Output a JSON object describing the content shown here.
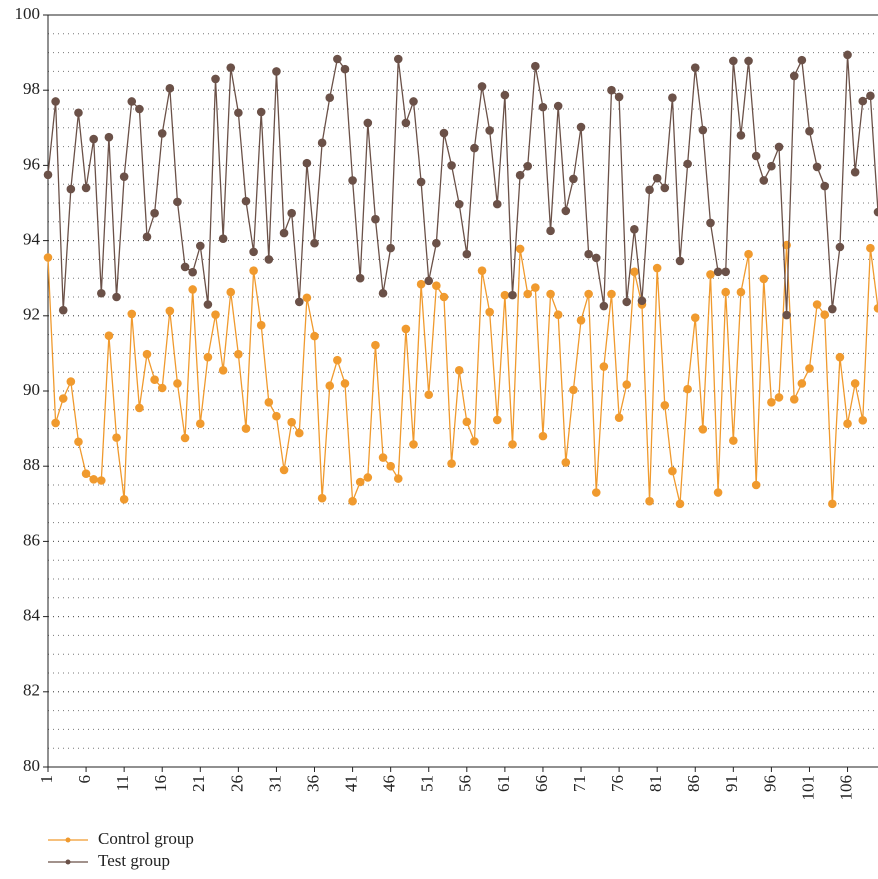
{
  "chart_data": {
    "type": "line",
    "x": [
      1,
      2,
      3,
      4,
      5,
      6,
      7,
      8,
      9,
      10,
      11,
      12,
      13,
      14,
      15,
      16,
      17,
      18,
      19,
      20,
      21,
      22,
      23,
      24,
      25,
      26,
      27,
      28,
      29,
      30,
      31,
      32,
      33,
      34,
      35,
      36,
      37,
      38,
      39,
      40,
      41,
      42,
      43,
      44,
      45,
      46,
      47,
      48,
      49,
      50,
      51,
      52,
      53,
      54,
      55,
      56,
      57,
      58,
      59,
      60,
      61,
      62,
      63,
      64,
      65,
      66,
      67,
      68,
      69,
      70,
      71,
      72,
      73,
      74,
      75,
      76,
      77,
      78,
      79,
      80,
      81,
      82,
      83,
      84,
      85,
      86,
      87,
      88,
      89,
      90,
      91,
      92,
      93,
      94,
      95,
      96,
      97,
      98,
      99,
      100,
      101,
      102,
      103,
      104,
      105,
      106,
      107,
      108,
      109,
      110
    ],
    "xlim": [
      1,
      110
    ],
    "xticks": [
      1,
      6,
      11,
      16,
      21,
      26,
      31,
      36,
      41,
      46,
      51,
      56,
      61,
      66,
      71,
      76,
      81,
      86,
      91,
      96,
      101,
      106
    ],
    "ylim": [
      80,
      100
    ],
    "yticks": [
      80,
      82,
      84,
      86,
      88,
      90,
      92,
      94,
      96,
      98,
      100
    ],
    "yminorticks": [
      80.5,
      81,
      81.5,
      82,
      82.5,
      83,
      83.5,
      84,
      84.5,
      85,
      85.5,
      86,
      86.5,
      87,
      87.5,
      88,
      88.5,
      89,
      89.5,
      90,
      90.5,
      91,
      91.5,
      92,
      92.5,
      93,
      93.5,
      94,
      94.5,
      95,
      95.5,
      96,
      96.5,
      97,
      97.5,
      98,
      98.5,
      99,
      99.5
    ],
    "grid": true,
    "legend": "bottom-left",
    "series": [
      {
        "name": "Control group",
        "color": "#f09a2e",
        "values": [
          93.55,
          89.15,
          89.8,
          90.25,
          88.65,
          87.8,
          87.65,
          87.62,
          91.47,
          88.76,
          87.12,
          92.05,
          89.55,
          90.98,
          90.3,
          90.08,
          92.13,
          90.2,
          88.75,
          92.7,
          89.13,
          90.9,
          92.03,
          90.55,
          92.63,
          90.98,
          89.0,
          93.2,
          91.75,
          89.7,
          89.33,
          87.9,
          89.17,
          88.88,
          92.48,
          91.46,
          87.15,
          90.14,
          90.82,
          90.2,
          87.07,
          87.58,
          87.7,
          91.22,
          88.23,
          88.0,
          87.67,
          91.65,
          88.58,
          92.84,
          89.9,
          92.8,
          92.5,
          88.07,
          90.55,
          89.18,
          88.66,
          93.2,
          92.1,
          89.23,
          92.55,
          88.58,
          93.78,
          92.58,
          92.75,
          88.8,
          92.58,
          92.03,
          88.1,
          90.03,
          91.88,
          92.58,
          87.3,
          90.65,
          92.58,
          89.29,
          90.17,
          93.17,
          92.3,
          87.07,
          93.27,
          89.62,
          87.87,
          87.0,
          90.05,
          91.95,
          88.98,
          93.1,
          87.3,
          92.63,
          88.68,
          92.63,
          93.64,
          87.5,
          92.98,
          89.7,
          89.83,
          93.88,
          89.78,
          90.2,
          90.6,
          92.3,
          92.03,
          87.0,
          90.9,
          89.13,
          90.2,
          89.22,
          93.8,
          92.2
        ]
      },
      {
        "name": "Test group",
        "color": "#6b5148",
        "values": [
          95.75,
          97.7,
          92.15,
          95.37,
          97.4,
          95.4,
          96.7,
          92.6,
          96.75,
          92.5,
          95.7,
          97.7,
          97.5,
          94.1,
          94.73,
          96.85,
          98.05,
          95.03,
          93.3,
          93.16,
          93.86,
          92.3,
          98.3,
          94.05,
          98.6,
          97.4,
          95.05,
          93.7,
          97.42,
          93.5,
          98.5,
          94.2,
          94.73,
          92.37,
          96.06,
          93.93,
          96.6,
          97.8,
          98.83,
          98.56,
          95.6,
          93.0,
          97.13,
          94.57,
          92.6,
          93.8,
          98.83,
          97.13,
          97.7,
          95.56,
          92.93,
          93.93,
          96.86,
          96.0,
          94.97,
          93.64,
          96.46,
          98.1,
          96.93,
          94.97,
          97.87,
          92.55,
          95.74,
          95.98,
          98.64,
          97.55,
          94.26,
          97.58,
          94.79,
          95.64,
          97.02,
          93.64,
          93.54,
          92.26,
          98.0,
          97.82,
          92.37,
          94.3,
          92.4,
          95.35,
          95.66,
          95.4,
          97.8,
          93.46,
          96.04,
          98.6,
          96.94,
          94.47,
          93.17,
          93.17,
          98.78,
          96.8,
          98.78,
          96.25,
          95.6,
          95.98,
          96.49,
          92.02,
          98.38,
          98.8,
          96.91,
          95.96,
          95.45,
          92.18,
          93.83,
          98.94,
          95.82,
          97.71,
          97.85,
          94.76
        ]
      }
    ]
  }
}
